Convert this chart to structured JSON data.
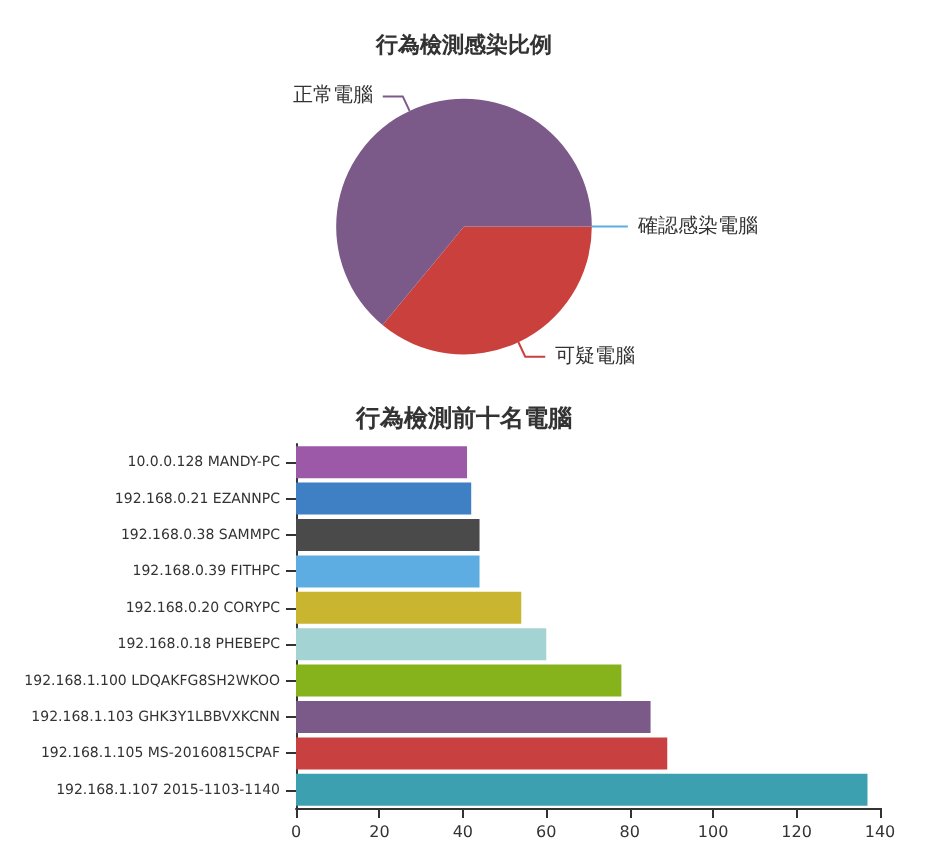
{
  "chart_data": [
    {
      "type": "pie",
      "title": "行為檢測感染比例",
      "categories": [
        "確認感染電腦",
        "可疑電腦",
        "正常電腦"
      ],
      "values": [
        0,
        36,
        64
      ],
      "colors": [
        "#5dade2",
        "#c9403c",
        "#7b5a8a"
      ]
    },
    {
      "type": "bar",
      "orientation": "horizontal",
      "title": "行為檢測前十名電腦",
      "categories": [
        "10.0.0.128 MANDY-PC",
        "192.168.0.21 EZANNPC",
        "192.168.0.38 SAMMPC",
        "192.168.0.39 FITHPC",
        "192.168.0.20 CORYPC",
        "192.168.0.18 PHEBEPC",
        "192.168.1.100 LDQAKFG8SH2WKOO",
        "192.168.1.103 GHK3Y1LBBVXKCNN",
        "192.168.1.105 MS-20160815CPAF",
        "192.168.1.107 2015-1103-1140"
      ],
      "values": [
        41,
        42,
        44,
        44,
        54,
        60,
        78,
        85,
        89,
        137
      ],
      "colors": [
        "#9b59a8",
        "#3f7fc4",
        "#4a4a4a",
        "#5dade2",
        "#c9b530",
        "#a3d3d3",
        "#86b21c",
        "#7b5a8a",
        "#c94040",
        "#3ca0b0"
      ],
      "xlim": [
        0,
        140
      ],
      "xticks": [
        0,
        20,
        40,
        60,
        80,
        100,
        120,
        140
      ],
      "grid": false
    }
  ]
}
